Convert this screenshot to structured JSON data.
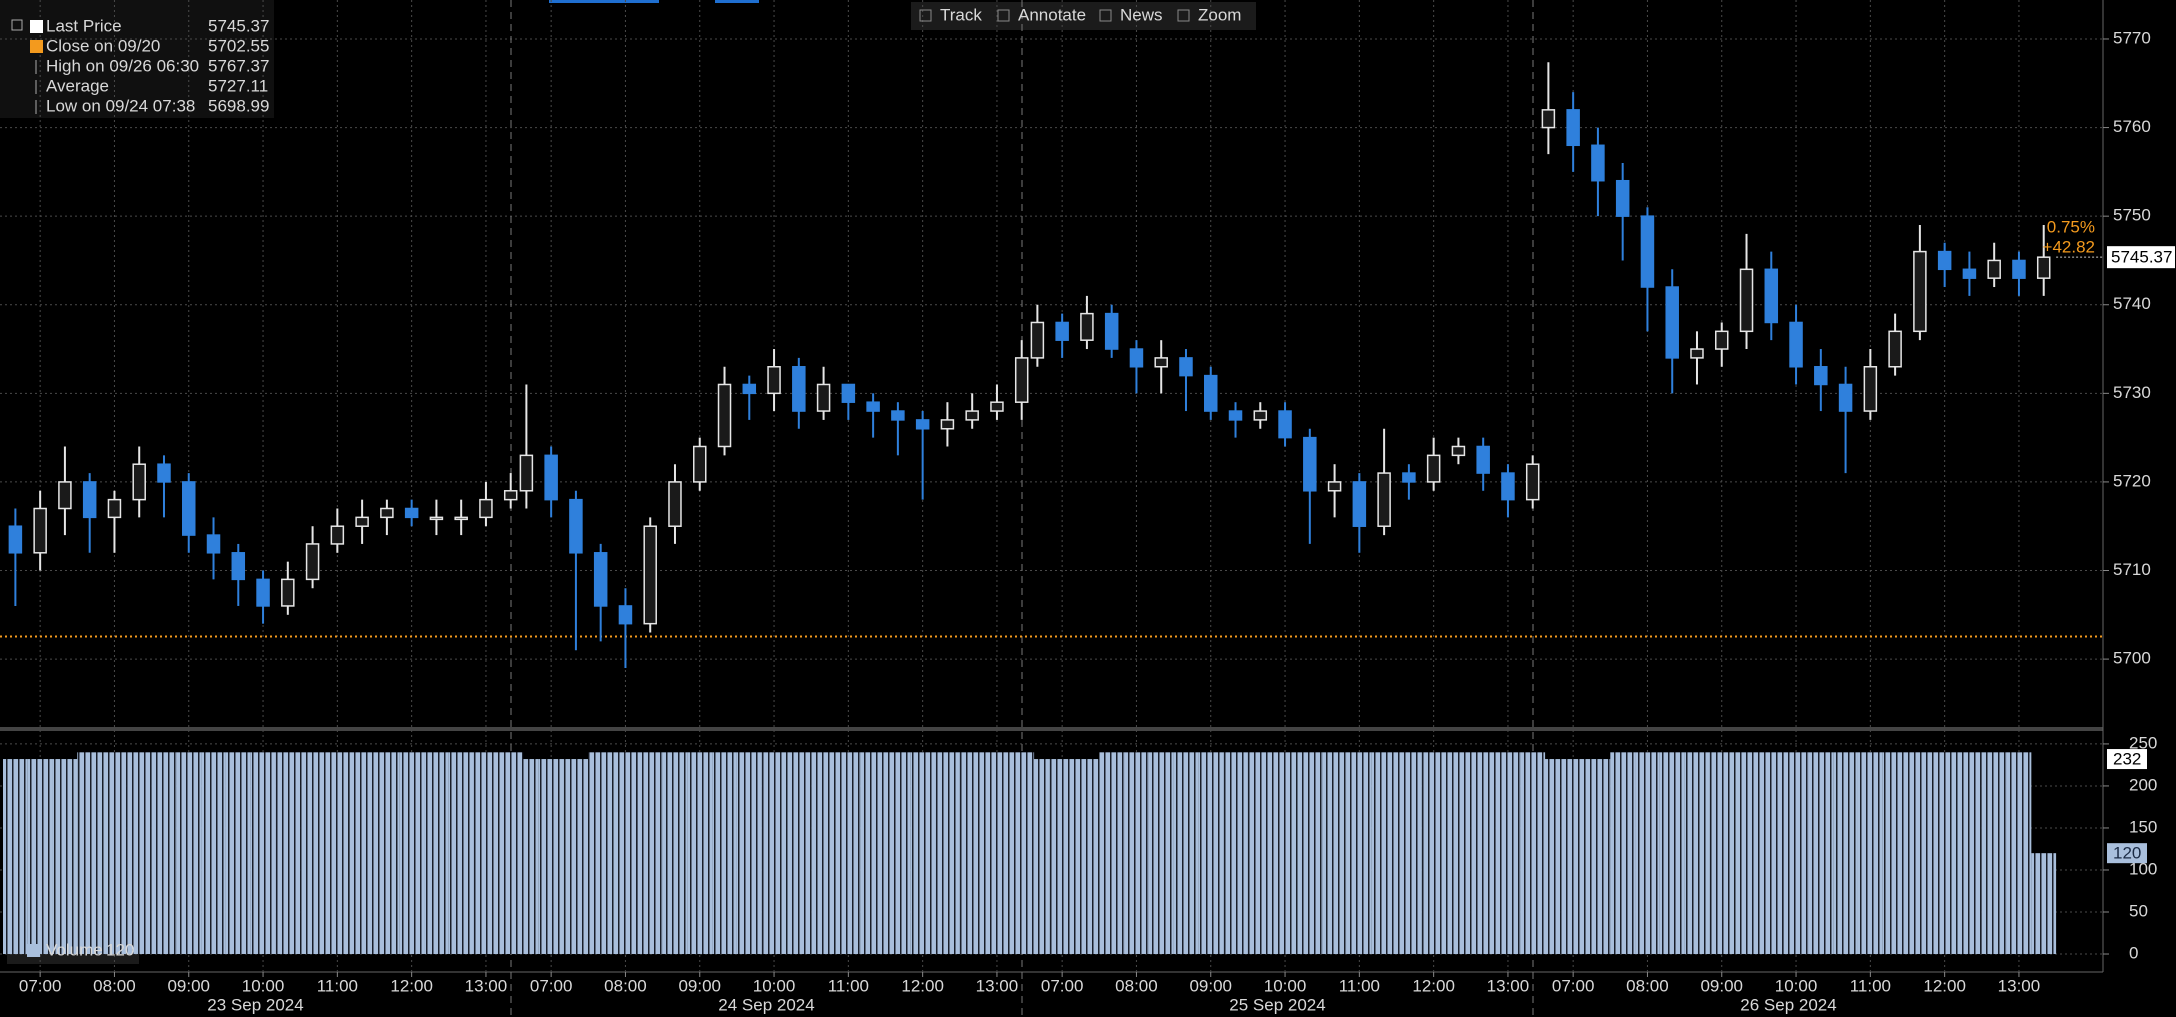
{
  "toolbar": [
    "Track",
    "Annotate",
    "News",
    "Zoom"
  ],
  "chart_data": {
    "type": "candlestick",
    "legend": [
      {
        "label": "Last Price",
        "value": 5745.37
      },
      {
        "label": "Close on 09/20",
        "value": 5702.55
      },
      {
        "label": "High on 09/26 06:30",
        "value": 5767.37
      },
      {
        "label": "Average",
        "value": 5727.11
      },
      {
        "label": "Low on 09/24 07:38",
        "value": 5698.99
      }
    ],
    "change_pct": {
      "value": 0.75,
      "label": "0.75%"
    },
    "change": {
      "value": 42.82,
      "label": "+42.82"
    },
    "days": [
      "23 Sep 2024",
      "24 Sep 2024",
      "25 Sep 2024",
      "26 Sep 2024"
    ],
    "xticks": [
      "07:00",
      "08:00",
      "09:00",
      "10:00",
      "11:00",
      "12:00",
      "13:00"
    ],
    "x": [
      "2024-09-23 06:30",
      "2024-09-23 06:50",
      "2024-09-23 07:10",
      "2024-09-23 07:30",
      "2024-09-23 07:50",
      "2024-09-23 08:10",
      "2024-09-23 08:30",
      "2024-09-23 08:50",
      "2024-09-23 09:10",
      "2024-09-23 09:30",
      "2024-09-23 09:50",
      "2024-09-23 10:10",
      "2024-09-23 10:30",
      "2024-09-23 10:50",
      "2024-09-23 11:10",
      "2024-09-23 11:30",
      "2024-09-23 11:50",
      "2024-09-23 12:10",
      "2024-09-23 12:30",
      "2024-09-23 12:50",
      "2024-09-23 13:10",
      "2024-09-24 06:30",
      "2024-09-24 06:50",
      "2024-09-24 07:10",
      "2024-09-24 07:30",
      "2024-09-24 07:50",
      "2024-09-24 08:10",
      "2024-09-24 08:30",
      "2024-09-24 08:50",
      "2024-09-24 09:10",
      "2024-09-24 09:30",
      "2024-09-24 09:50",
      "2024-09-24 10:10",
      "2024-09-24 10:30",
      "2024-09-24 10:50",
      "2024-09-24 11:10",
      "2024-09-24 11:30",
      "2024-09-24 11:50",
      "2024-09-24 12:10",
      "2024-09-24 12:30",
      "2024-09-24 12:50",
      "2024-09-24 13:10",
      "2024-09-25 06:30",
      "2024-09-25 06:50",
      "2024-09-25 07:10",
      "2024-09-25 07:30",
      "2024-09-25 07:50",
      "2024-09-25 08:10",
      "2024-09-25 08:30",
      "2024-09-25 08:50",
      "2024-09-25 09:10",
      "2024-09-25 09:30",
      "2024-09-25 09:50",
      "2024-09-25 10:10",
      "2024-09-25 10:30",
      "2024-09-25 10:50",
      "2024-09-25 11:10",
      "2024-09-25 11:30",
      "2024-09-25 11:50",
      "2024-09-25 12:10",
      "2024-09-25 12:30",
      "2024-09-25 12:50",
      "2024-09-25 13:10",
      "2024-09-26 06:30",
      "2024-09-26 06:50",
      "2024-09-26 07:10",
      "2024-09-26 07:30",
      "2024-09-26 07:50",
      "2024-09-26 08:10",
      "2024-09-26 08:30",
      "2024-09-26 08:50",
      "2024-09-26 09:10",
      "2024-09-26 09:30",
      "2024-09-26 09:50",
      "2024-09-26 10:10",
      "2024-09-26 10:30",
      "2024-09-26 10:50",
      "2024-09-26 11:10",
      "2024-09-26 11:30",
      "2024-09-26 11:50",
      "2024-09-26 12:10",
      "2024-09-26 12:30",
      "2024-09-26 12:50",
      "2024-09-26 13:10"
    ],
    "open": [
      5715,
      5712,
      5717,
      5720,
      5716,
      5718,
      5722,
      5720,
      5714,
      5712,
      5709,
      5706,
      5709,
      5713,
      5715,
      5716,
      5717,
      5716,
      5716,
      5716,
      5718,
      5719,
      5723,
      5718,
      5712,
      5706,
      5704,
      5715,
      5720,
      5724,
      5731,
      5730,
      5733,
      5728,
      5731,
      5729,
      5728,
      5727,
      5726,
      5727,
      5728,
      5729,
      5734,
      5738,
      5736,
      5739,
      5735,
      5733,
      5734,
      5732,
      5728,
      5727,
      5728,
      5725,
      5719,
      5720,
      5715,
      5721,
      5720,
      5723,
      5724,
      5721,
      5718,
      5760,
      5762,
      5758,
      5754,
      5750,
      5742,
      5734,
      5735,
      5737,
      5744,
      5738,
      5733,
      5731,
      5728,
      5733,
      5737,
      5746,
      5744,
      5743,
      5745,
      5743
    ],
    "high": [
      5717,
      5719,
      5724,
      5721,
      5719,
      5724,
      5723,
      5721,
      5716,
      5713,
      5710,
      5711,
      5715,
      5717,
      5718,
      5718,
      5718,
      5718,
      5718,
      5720,
      5721,
      5731,
      5724,
      5719,
      5713,
      5708,
      5716,
      5722,
      5725,
      5733,
      5732,
      5735,
      5734,
      5733,
      5731,
      5730,
      5729,
      5728,
      5729,
      5730,
      5731,
      5736,
      5740,
      5739,
      5741,
      5740,
      5736,
      5736,
      5735,
      5733,
      5729,
      5729,
      5729,
      5726,
      5722,
      5721,
      5726,
      5722,
      5725,
      5725,
      5725,
      5722,
      5723,
      5767.37,
      5764,
      5760,
      5756,
      5751,
      5744,
      5737,
      5738,
      5748,
      5746,
      5740,
      5735,
      5733,
      5735,
      5739,
      5749,
      5747,
      5746,
      5747,
      5746,
      5749
    ],
    "low": [
      5706,
      5710,
      5714,
      5712,
      5712,
      5716,
      5716,
      5712,
      5709,
      5706,
      5704,
      5705,
      5708,
      5712,
      5713,
      5714,
      5715,
      5714,
      5714,
      5715,
      5717,
      5717,
      5716,
      5701,
      5702,
      5699,
      5703,
      5713,
      5719,
      5723,
      5727,
      5728,
      5726,
      5727,
      5727,
      5725,
      5723,
      5718,
      5724,
      5726,
      5727,
      5727,
      5733,
      5734,
      5735,
      5734,
      5730,
      5730,
      5728,
      5727,
      5725,
      5726,
      5724,
      5713,
      5716,
      5712,
      5714,
      5718,
      5719,
      5722,
      5719,
      5716,
      5717,
      5757,
      5755,
      5750,
      5745,
      5737,
      5730,
      5731,
      5733,
      5735,
      5736,
      5731,
      5728,
      5721,
      5727,
      5732,
      5736,
      5742,
      5741,
      5742,
      5741,
      5741
    ],
    "close": [
      5712,
      5717,
      5720,
      5716,
      5718,
      5722,
      5720,
      5714,
      5712,
      5709,
      5706,
      5709,
      5713,
      5715,
      5716,
      5717,
      5716,
      5716,
      5716,
      5718,
      5719,
      5723,
      5718,
      5712,
      5706,
      5704,
      5715,
      5720,
      5724,
      5731,
      5730,
      5733,
      5728,
      5731,
      5729,
      5728,
      5727,
      5726,
      5727,
      5728,
      5729,
      5734,
      5738,
      5736,
      5739,
      5735,
      5733,
      5734,
      5732,
      5728,
      5727,
      5728,
      5725,
      5719,
      5720,
      5715,
      5721,
      5720,
      5723,
      5724,
      5721,
      5718,
      5722,
      5762,
      5758,
      5754,
      5750,
      5742,
      5734,
      5735,
      5737,
      5744,
      5738,
      5733,
      5731,
      5728,
      5733,
      5737,
      5746,
      5744,
      5743,
      5745,
      5743,
      5745.37
    ],
    "up_color": "#e6e6e6",
    "down_color": "#2f80dc",
    "close_line_color": "#f39a1e",
    "ylim": [
      5692.9,
      5774.4
    ],
    "yticks": [
      5700,
      5710,
      5720,
      5730,
      5740,
      5750,
      5760,
      5770
    ],
    "grid": true,
    "volume": {
      "name": "Volume",
      "last": 120,
      "marker": 232,
      "color": "#a9bfdc",
      "values": [
        232,
        232,
        232,
        240,
        240,
        240,
        240,
        240,
        240,
        240,
        240,
        240,
        240,
        240,
        240,
        240,
        240,
        240,
        240,
        240,
        240,
        232,
        232,
        232,
        240,
        240,
        240,
        240,
        240,
        240,
        240,
        240,
        240,
        240,
        240,
        240,
        240,
        240,
        240,
        240,
        240,
        240,
        232,
        232,
        232,
        240,
        240,
        240,
        240,
        240,
        240,
        240,
        240,
        240,
        240,
        240,
        240,
        240,
        240,
        240,
        240,
        240,
        240,
        232,
        232,
        232,
        240,
        240,
        240,
        240,
        240,
        240,
        240,
        240,
        240,
        240,
        240,
        240,
        240,
        240,
        240,
        240,
        240,
        120
      ],
      "ylim": [
        -21.4,
        263
      ],
      "yticks": [
        0,
        50,
        100,
        150,
        200,
        250
      ]
    }
  }
}
